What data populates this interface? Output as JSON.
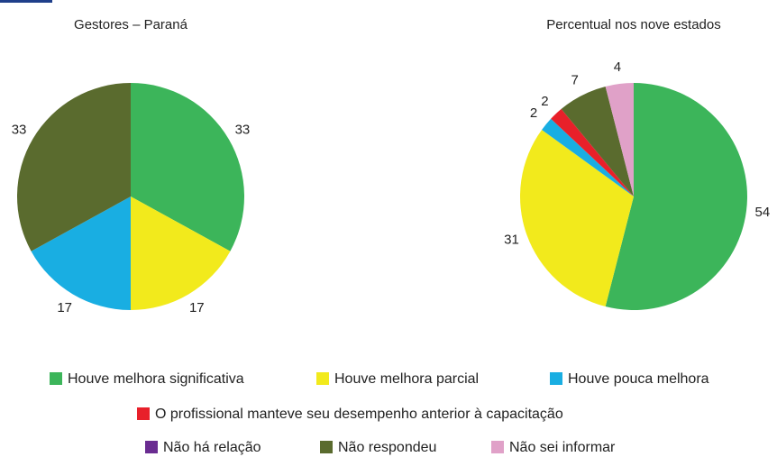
{
  "chart_data": [
    {
      "type": "pie",
      "title": "Gestores – Paraná",
      "categories": [
        "Houve melhora significativa",
        "Houve melhora parcial",
        "Houve pouca melhora",
        "Não respondeu"
      ],
      "values": [
        33,
        17,
        17,
        33
      ],
      "colors": [
        "#3cb55a",
        "#f2ea1c",
        "#19aee2",
        "#5a6b2e"
      ]
    },
    {
      "type": "pie",
      "title": "Percentual nos nove estados",
      "categories": [
        "Houve melhora significativa",
        "Houve melhora parcial",
        "Houve pouca melhora",
        "O profissional manteve seu desempenho anterior à capacitação",
        "Não respondeu",
        "Não sei informar"
      ],
      "values": [
        54,
        31,
        2,
        2,
        7,
        4
      ],
      "colors": [
        "#3cb55a",
        "#f2ea1c",
        "#19aee2",
        "#e8202a",
        "#5a6b2e",
        "#e0a1c8"
      ]
    }
  ],
  "legend": [
    {
      "name": "Houve melhora significativa",
      "color": "#3cb55a"
    },
    {
      "name": "Houve melhora parcial",
      "color": "#f2ea1c"
    },
    {
      "name": "Houve pouca melhora",
      "color": "#19aee2"
    },
    {
      "name": "O profissional manteve seu desempenho anterior à capacitação",
      "color": "#e8202a"
    },
    {
      "name": "Não há relação",
      "color": "#6a2c91"
    },
    {
      "name": "Não respondeu",
      "color": "#5a6b2e"
    },
    {
      "name": "Não sei informar",
      "color": "#e0a1c8"
    }
  ]
}
